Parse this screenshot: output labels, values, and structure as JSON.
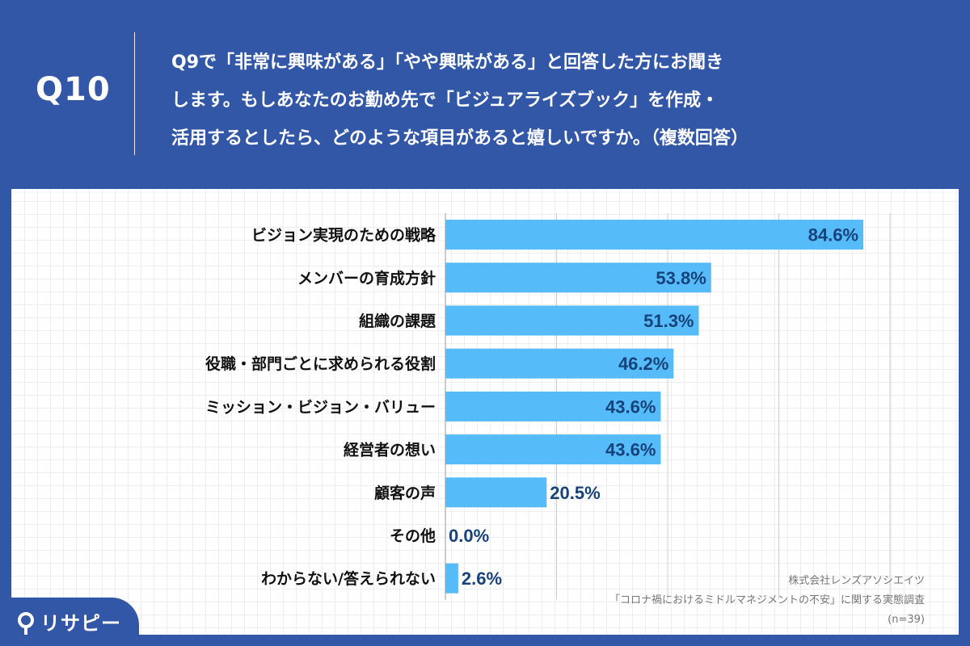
{
  "header": {
    "q_label": "Q10",
    "question_lines": [
      "Q9で「非常に興味がある」「やや興味がある」と回答した方にお聞き",
      "します。もしあなたのお勤め先で「ビジュアライズブック」を作成・",
      "活用するとしたら、どのような項目があると嬉しいですか。（複数回答）"
    ]
  },
  "colors": {
    "background": "#3357a7",
    "bar": "#56bbf9",
    "value_text": "#17427a",
    "category_text": "#111111",
    "gridline": "#cccccc"
  },
  "chart_data": {
    "type": "bar",
    "orientation": "horizontal",
    "categories": [
      "ビジョン実現のための戦略",
      "メンバーの育成方針",
      "組織の課題",
      "役職・部門ごとに求められる役割",
      "ミッション・ビジョン・バリュー",
      "経営者の想い",
      "顧客の声",
      "その他",
      "わからない/答えられない"
    ],
    "values": [
      84.6,
      53.8,
      51.3,
      46.2,
      43.6,
      43.6,
      20.5,
      0.0,
      2.6
    ],
    "value_labels": [
      "84.6%",
      "53.8%",
      "51.3%",
      "46.2%",
      "43.6%",
      "43.6%",
      "20.5%",
      "0.0%",
      "2.6%"
    ],
    "xlim": [
      0,
      90
    ],
    "gridlines": [
      0,
      22.5,
      45,
      67.5,
      90
    ]
  },
  "source": {
    "company": "株式会社レンズアソシエイツ",
    "survey": "「コロナ禍におけるミドルマネジメントの不安」に関する実態調査",
    "n": "(n=39)"
  },
  "logo": {
    "text": "リサピー"
  }
}
